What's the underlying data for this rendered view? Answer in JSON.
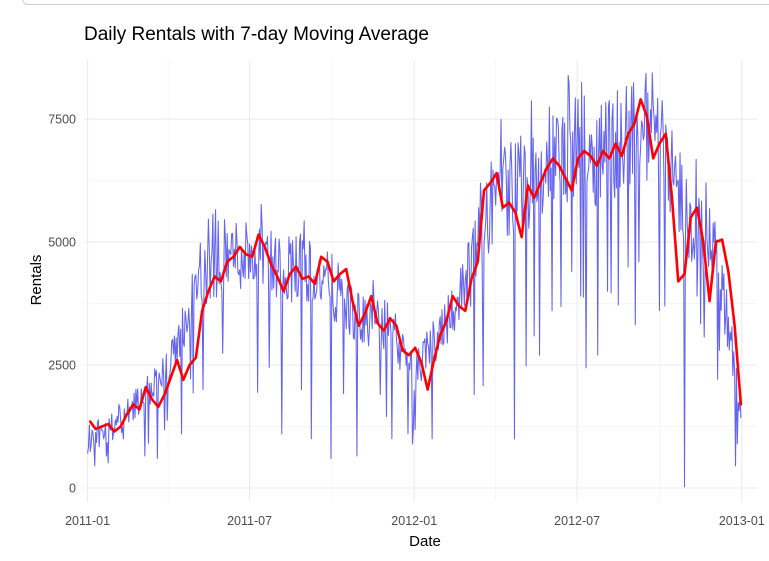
{
  "chart_data": {
    "type": "line",
    "title": "Daily Rentals with 7-day Moving Average",
    "xlabel": "Date",
    "ylabel": "Rentals",
    "ylim": [
      0,
      8700
    ],
    "xlim": [
      "2010-12-28",
      "2013-01-18"
    ],
    "grid": true,
    "x_ticks": [
      {
        "date": "2011-01-01",
        "label": "2011-01"
      },
      {
        "date": "2011-07-01",
        "label": "2011-07"
      },
      {
        "date": "2012-01-01",
        "label": "2012-01"
      },
      {
        "date": "2012-07-01",
        "label": "2012-07"
      },
      {
        "date": "2013-01-01",
        "label": "2013-01"
      }
    ],
    "x_minor_ticks": [
      "2011-04-01",
      "2011-10-01",
      "2012-04-01",
      "2012-10-01"
    ],
    "y_ticks": [
      0,
      2500,
      5000,
      7500
    ],
    "y_minor_ticks": [
      1250,
      3750,
      6250,
      8750
    ],
    "series": [
      {
        "name": "Daily rentals",
        "color": "#6464ee",
        "start_date": "2011-01-01",
        "end_date": "2012-12-31",
        "envelope_dates": [
          "2011-01-01",
          "2011-02-01",
          "2011-03-01",
          "2011-04-01",
          "2011-05-01",
          "2011-06-01",
          "2011-07-01",
          "2011-08-01",
          "2011-09-01",
          "2011-10-01",
          "2011-11-01",
          "2011-12-01",
          "2012-01-01",
          "2012-02-01",
          "2012-03-01",
          "2012-04-01",
          "2012-05-01",
          "2012-06-01",
          "2012-07-01",
          "2012-08-01",
          "2012-09-01",
          "2012-10-01",
          "2012-11-01",
          "2012-12-01",
          "2012-12-31"
        ],
        "envelope_values": [
          1000,
          1300,
          1800,
          2400,
          4000,
          4700,
          4800,
          4500,
          4500,
          4100,
          3400,
          3300,
          2300,
          3300,
          4200,
          6100,
          6100,
          6600,
          6900,
          6800,
          7300,
          7400,
          5500,
          5000,
          1600
        ],
        "spike_dates": [
          "2011-01-09",
          "2011-01-22",
          "2011-02-10",
          "2011-03-06",
          "2011-03-20",
          "2011-04-16",
          "2011-05-10",
          "2011-08-06",
          "2011-08-28",
          "2011-09-08",
          "2011-09-30",
          "2011-10-29",
          "2011-11-24",
          "2011-12-07",
          "2011-12-25",
          "2012-01-21",
          "2012-03-08",
          "2012-04-22",
          "2012-05-20",
          "2012-06-03",
          "2012-07-05",
          "2012-08-04",
          "2012-09-08",
          "2012-10-07",
          "2012-10-29",
          "2012-11-12",
          "2012-12-07",
          "2012-12-25"
        ],
        "spike_values": [
          450,
          650,
          1000,
          650,
          600,
          1100,
          2000,
          1100,
          2000,
          1000,
          600,
          650,
          1900,
          1000,
          1100,
          1000,
          1900,
          1000,
          2700,
          3600,
          3900,
          4000,
          4600,
          3700,
          25,
          3900,
          2800,
          450
        ]
      },
      {
        "name": "7-day moving average",
        "color": "#ff0000",
        "dates": [
          "2011-01-04",
          "2011-01-10",
          "2011-01-17",
          "2011-01-24",
          "2011-01-31",
          "2011-02-07",
          "2011-02-14",
          "2011-02-21",
          "2011-02-28",
          "2011-03-07",
          "2011-03-14",
          "2011-03-21",
          "2011-03-28",
          "2011-04-04",
          "2011-04-11",
          "2011-04-18",
          "2011-04-25",
          "2011-05-02",
          "2011-05-09",
          "2011-05-16",
          "2011-05-23",
          "2011-05-30",
          "2011-06-06",
          "2011-06-13",
          "2011-06-20",
          "2011-06-27",
          "2011-07-04",
          "2011-07-11",
          "2011-07-18",
          "2011-07-25",
          "2011-08-01",
          "2011-08-08",
          "2011-08-15",
          "2011-08-22",
          "2011-08-29",
          "2011-09-05",
          "2011-09-12",
          "2011-09-19",
          "2011-09-26",
          "2011-10-03",
          "2011-10-10",
          "2011-10-17",
          "2011-10-24",
          "2011-10-31",
          "2011-11-07",
          "2011-11-14",
          "2011-11-21",
          "2011-11-28",
          "2011-12-05",
          "2011-12-12",
          "2011-12-19",
          "2011-12-26",
          "2012-01-02",
          "2012-01-09",
          "2012-01-16",
          "2012-01-23",
          "2012-01-30",
          "2012-02-06",
          "2012-02-13",
          "2012-02-20",
          "2012-02-27",
          "2012-03-05",
          "2012-03-12",
          "2012-03-19",
          "2012-03-26",
          "2012-04-02",
          "2012-04-09",
          "2012-04-16",
          "2012-04-23",
          "2012-04-30",
          "2012-05-07",
          "2012-05-14",
          "2012-05-21",
          "2012-05-28",
          "2012-06-04",
          "2012-06-11",
          "2012-06-18",
          "2012-06-25",
          "2012-07-02",
          "2012-07-09",
          "2012-07-16",
          "2012-07-23",
          "2012-07-30",
          "2012-08-06",
          "2012-08-13",
          "2012-08-20",
          "2012-08-27",
          "2012-09-03",
          "2012-09-10",
          "2012-09-17",
          "2012-09-24",
          "2012-10-01",
          "2012-10-08",
          "2012-10-15",
          "2012-10-22",
          "2012-10-29",
          "2012-11-05",
          "2012-11-12",
          "2012-11-19",
          "2012-11-26",
          "2012-12-03",
          "2012-12-10",
          "2012-12-17",
          "2012-12-24",
          "2012-12-31"
        ],
        "values": [
          1350,
          1200,
          1250,
          1300,
          1150,
          1250,
          1500,
          1700,
          1600,
          2050,
          1800,
          1650,
          1900,
          2250,
          2600,
          2200,
          2500,
          2650,
          3600,
          4000,
          4300,
          4200,
          4600,
          4700,
          4900,
          4750,
          4700,
          5150,
          4900,
          4550,
          4300,
          4000,
          4350,
          4500,
          4250,
          4300,
          4150,
          4700,
          4600,
          4200,
          4350,
          4450,
          3800,
          3300,
          3550,
          3900,
          3350,
          3200,
          3450,
          3300,
          2800,
          2700,
          2850,
          2550,
          2000,
          2600,
          3100,
          3400,
          3900,
          3700,
          3600,
          4250,
          4600,
          6050,
          6200,
          6400,
          5700,
          5800,
          5600,
          5100,
          6150,
          5900,
          6200,
          6500,
          6700,
          6550,
          6300,
          6050,
          6700,
          6850,
          6750,
          6550,
          6850,
          6700,
          7000,
          6750,
          7200,
          7400,
          7900,
          7550,
          6700,
          7000,
          7200,
          5900,
          4200,
          4350,
          5500,
          5700,
          5000,
          3800,
          5000,
          5050,
          4400,
          3300,
          1700
        ]
      }
    ]
  }
}
